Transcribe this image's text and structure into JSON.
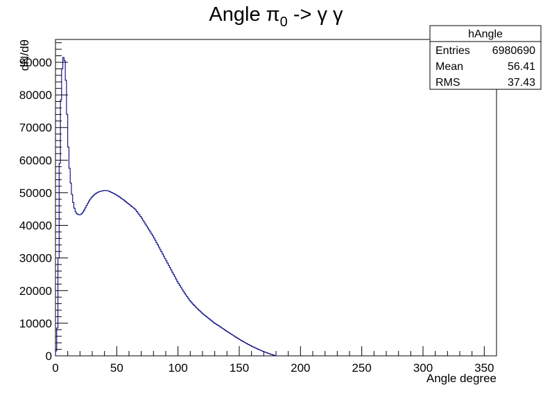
{
  "chart_data": {
    "type": "histogram",
    "title": {
      "main": "Angle π",
      "sub": "0",
      "rest": " -> γ γ"
    },
    "xlabel": "Angle degree",
    "ylabel": "dN/dθ",
    "xlim": [
      0,
      360
    ],
    "ylim": [
      0,
      97000
    ],
    "xticks": [
      0,
      50,
      100,
      150,
      200,
      250,
      300,
      350
    ],
    "yticks": [
      0,
      10000,
      20000,
      30000,
      40000,
      50000,
      60000,
      70000,
      80000,
      90000
    ],
    "grid": false,
    "line_color": "#000080",
    "bin_width": 1,
    "curve": [
      [
        0,
        0
      ],
      [
        1,
        3000
      ],
      [
        2,
        14000
      ],
      [
        3,
        46000
      ],
      [
        4,
        72000
      ],
      [
        5,
        85000
      ],
      [
        6,
        91000
      ],
      [
        7,
        92000
      ],
      [
        8,
        89000
      ],
      [
        9,
        80000
      ],
      [
        10,
        68000
      ],
      [
        11,
        60000
      ],
      [
        12,
        55000
      ],
      [
        13,
        51000
      ],
      [
        14,
        48000
      ],
      [
        15,
        46000
      ],
      [
        16,
        44500
      ],
      [
        17,
        43800
      ],
      [
        18,
        43400
      ],
      [
        19,
        43300
      ],
      [
        20,
        43200
      ],
      [
        21,
        43400
      ],
      [
        22,
        43800
      ],
      [
        24,
        45000
      ],
      [
        26,
        46500
      ],
      [
        28,
        47800
      ],
      [
        30,
        48800
      ],
      [
        33,
        49800
      ],
      [
        36,
        50400
      ],
      [
        40,
        50700
      ],
      [
        43,
        50600
      ],
      [
        46,
        50100
      ],
      [
        50,
        49300
      ],
      [
        55,
        48000
      ],
      [
        60,
        46500
      ],
      [
        65,
        45000
      ],
      [
        70,
        42500
      ],
      [
        75,
        39500
      ],
      [
        80,
        36500
      ],
      [
        85,
        33000
      ],
      [
        90,
        29500
      ],
      [
        95,
        26000
      ],
      [
        100,
        22500
      ],
      [
        105,
        19500
      ],
      [
        110,
        16800
      ],
      [
        115,
        14800
      ],
      [
        120,
        13000
      ],
      [
        125,
        11500
      ],
      [
        130,
        10000
      ],
      [
        135,
        8800
      ],
      [
        140,
        7500
      ],
      [
        145,
        6300
      ],
      [
        150,
        5100
      ],
      [
        155,
        4000
      ],
      [
        160,
        3000
      ],
      [
        165,
        2100
      ],
      [
        170,
        1300
      ],
      [
        175,
        600
      ],
      [
        178,
        250
      ],
      [
        180,
        0
      ],
      [
        181,
        0
      ]
    ],
    "stats": {
      "name": "hAngle",
      "rows": [
        {
          "label": "Entries",
          "value": "6980690"
        },
        {
          "label": "Mean",
          "value": "56.41"
        },
        {
          "label": "RMS",
          "value": "37.43"
        }
      ]
    }
  }
}
